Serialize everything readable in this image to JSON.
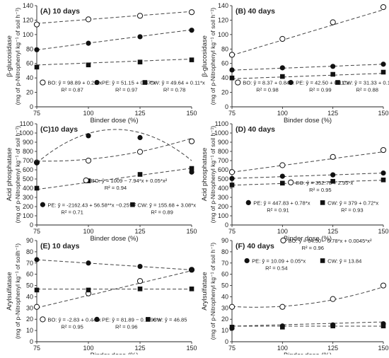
{
  "figure": {
    "x_axis_label": "Binder dose (%)",
    "x_ticks": [
      "75",
      "100",
      "125",
      "150"
    ]
  },
  "chart_data": [
    {
      "type": "scatter",
      "title": "(A) 10 days",
      "ylabel_main": "β-glucosidase",
      "ylabel_unit": "(mg of p-Nitrophenyl kg⁻¹ of soil h⁻¹)",
      "xlabel": "Binder dose (%)",
      "x": [
        75,
        100,
        125,
        150
      ],
      "xlim": [
        75,
        150
      ],
      "ylim": [
        0,
        140
      ],
      "yticks": [
        0,
        20,
        40,
        60,
        80,
        100,
        120,
        140
      ],
      "series": [
        {
          "name": "BO",
          "marker": "circle-open",
          "values": [
            114,
            121,
            126,
            131
          ],
          "equation": "ŷ = 98.89 + 0.22*x",
          "r2": "R² = 0.87",
          "fit": [
            98.89,
            0.22,
            0
          ]
        },
        {
          "name": "PE",
          "marker": "circle-filled",
          "values": [
            79,
            88,
            97,
            106
          ],
          "equation": "ŷ = 51.15 + 0.37*x",
          "r2": "R² = 0.97",
          "fit": [
            51.15,
            0.37,
            0
          ]
        },
        {
          "name": "CW",
          "marker": "square-filled",
          "values": [
            55,
            58,
            62,
            65
          ],
          "equation": "ŷ = 49.64 + 0.11*x",
          "r2": "R² = 0.78",
          "fit": [
            49.64,
            0.11,
            0
          ]
        }
      ]
    },
    {
      "type": "scatter",
      "title": "(B) 40 days",
      "ylabel_main": "β-glucosidase",
      "ylabel_unit": "(mg of p-Nitrophenyl kg⁻¹ of soil h⁻¹)",
      "xlabel": "Binder dose (%)",
      "x": [
        75,
        100,
        125,
        150
      ],
      "xlim": [
        75,
        150
      ],
      "ylim": [
        0,
        140
      ],
      "yticks": [
        0,
        20,
        40,
        60,
        80,
        100,
        120,
        140
      ],
      "series": [
        {
          "name": "BO",
          "marker": "circle-open",
          "values": [
            72,
            94,
            117,
            138
          ],
          "equation": "ŷ = 8.37 + 0.84*x",
          "r2": "R² = 0.98",
          "fit": [
            8.37,
            0.84,
            0
          ]
        },
        {
          "name": "PE",
          "marker": "circle-filled",
          "values": [
            51,
            54,
            56,
            59
          ],
          "equation": "ŷ = 42.50 + 0.11*x",
          "r2": "R² = 0.99",
          "fit": [
            42.5,
            0.11,
            0
          ]
        },
        {
          "name": "CW",
          "marker": "square-filled",
          "values": [
            40,
            42,
            45,
            48
          ],
          "equation": "ŷ = 31.33 + 0.10*x",
          "r2": "R² = 0.88",
          "fit": [
            31.33,
            0.1,
            0
          ]
        }
      ]
    },
    {
      "type": "scatter",
      "title": "(C)10 days",
      "ylabel_main": "Acid phosphatase",
      "ylabel_unit": "(mg of p-Nitrophenyl kg⁻¹ of soil h⁻¹)",
      "xlabel": "Binder dose (%)",
      "x": [
        75,
        100,
        125,
        150
      ],
      "xlim": [
        75,
        150
      ],
      "ylim": [
        0,
        1100
      ],
      "yticks": [
        0,
        100,
        200,
        300,
        400,
        500,
        600,
        700,
        800,
        900,
        1000,
        1100
      ],
      "series": [
        {
          "name": "BO",
          "marker": "circle-open",
          "values": [
            680,
            700,
            795,
            910
          ],
          "equation": "ŷ = 1009 − 7.94*x + 0.05*x²",
          "r2": "R² = 0.94",
          "fit": [
            1009,
            -7.94,
            0.05
          ]
        },
        {
          "name": "PE",
          "marker": "circle-filled",
          "values": [
            675,
            970,
            950,
            575
          ],
          "equation": "ŷ = -2162.43 + 56.58**x −0.25*x²",
          "r2": "R² = 0.71",
          "fit": [
            -2162.43,
            56.58,
            -0.25
          ]
        },
        {
          "name": "CW",
          "marker": "square-filled",
          "values": [
            400,
            480,
            550,
            615
          ],
          "equation": "ŷ = 155.68 + 3.08*x",
          "r2": "R² = 0.89",
          "fit": [
            155.68,
            3.08,
            0
          ]
        }
      ]
    },
    {
      "type": "scatter",
      "title": "(D) 40 days",
      "ylabel_main": "Acid phosphatase",
      "ylabel_unit": "(mg of p-Nitrophenyl kg⁻¹ of soil h⁻¹)",
      "xlabel": "Binder dose (%)",
      "x": [
        75,
        100,
        125,
        150
      ],
      "xlim": [
        75,
        150
      ],
      "ylim": [
        0,
        1100
      ],
      "yticks": [
        0,
        100,
        200,
        300,
        400,
        500,
        600,
        700,
        800,
        900,
        1000,
        1100
      ],
      "series": [
        {
          "name": "BO",
          "marker": "circle-open",
          "values": [
            575,
            650,
            740,
            815
          ],
          "equation": "ŷ = 352.78 + 2.95*x",
          "r2": "R² = 0.95",
          "fit": [
            352.78,
            2.95,
            0
          ]
        },
        {
          "name": "PE",
          "marker": "circle-filled",
          "values": [
            505,
            530,
            545,
            565
          ],
          "equation": "ŷ = 447.83 + 0.78*x",
          "r2": "R² = 0.91",
          "fit": [
            447.83,
            0.78,
            0
          ]
        },
        {
          "name": "CW",
          "marker": "square-filled",
          "values": [
            435,
            455,
            475,
            490
          ],
          "equation": "ŷ = 379 + 0.72*x",
          "r2": "R² = 0.93",
          "fit": [
            379,
            0.72,
            0
          ]
        }
      ]
    },
    {
      "type": "scatter",
      "title": "(E) 10 days",
      "ylabel_main": "Arylsulfatase",
      "ylabel_unit": "(mg of p-Nitrophenyl kg⁻¹ of soilh⁻¹)",
      "xlabel": "Binder dose (%)",
      "x": [
        75,
        100,
        125,
        150
      ],
      "xlim": [
        75,
        150
      ],
      "ylim": [
        0,
        90
      ],
      "yticks": [
        0,
        10,
        20,
        30,
        40,
        50,
        60,
        70,
        80,
        90
      ],
      "series": [
        {
          "name": "BO",
          "marker": "circle-open",
          "values": [
            31,
            43,
            54,
            64
          ],
          "equation": "ŷ = -2.83 + 0.44*x",
          "r2": "R² = 0.95",
          "fit": [
            -2.83,
            0.44,
            0
          ]
        },
        {
          "name": "PE",
          "marker": "circle-filled",
          "values": [
            73,
            70,
            67,
            64
          ],
          "equation": "ŷ = 81.89 − 0.1196*x",
          "r2": "R² = 0.96",
          "fit": [
            81.89,
            -0.1196,
            0
          ]
        },
        {
          "name": "CW",
          "marker": "square-filled",
          "values": [
            46,
            46,
            47,
            47
          ],
          "equation": "ŷ = 46.85",
          "r2": "",
          "fit": [
            46.85,
            0,
            0
          ]
        }
      ]
    },
    {
      "type": "scatter",
      "title": "(F) 40 days",
      "ylabel_main": "Arylsulfatase",
      "ylabel_unit": "(mg of p-Nitrophenyl kg⁻¹ of soil h⁻¹)",
      "xlabel": "Binder dose (%)",
      "x": [
        75,
        100,
        125,
        150
      ],
      "xlim": [
        75,
        150
      ],
      "ylim": [
        0,
        90
      ],
      "yticks": [
        0,
        10,
        20,
        30,
        40,
        50,
        60,
        70,
        80,
        90
      ],
      "series": [
        {
          "name": "BO",
          "marker": "circle-open",
          "values": [
            31,
            31,
            38,
            50
          ],
          "equation": "ŷ = 64.50 − 0.78*x + 0.0045*x²",
          "r2": "R² = 0.96",
          "fit": [
            64.5,
            -0.78,
            0.0045
          ]
        },
        {
          "name": "PE",
          "marker": "circle-filled",
          "values": [
            12,
            14,
            15,
            16
          ],
          "equation": "ŷ = 10.09 + 0.05*x",
          "r2": "R² = 0.54",
          "fit": [
            10.09,
            0.05,
            0
          ]
        },
        {
          "name": "CW",
          "marker": "square-filled",
          "values": [
            13,
            13,
            14,
            14
          ],
          "equation": "ŷ = 13.84",
          "r2": "",
          "fit": [
            13.84,
            0,
            0
          ]
        }
      ]
    }
  ]
}
